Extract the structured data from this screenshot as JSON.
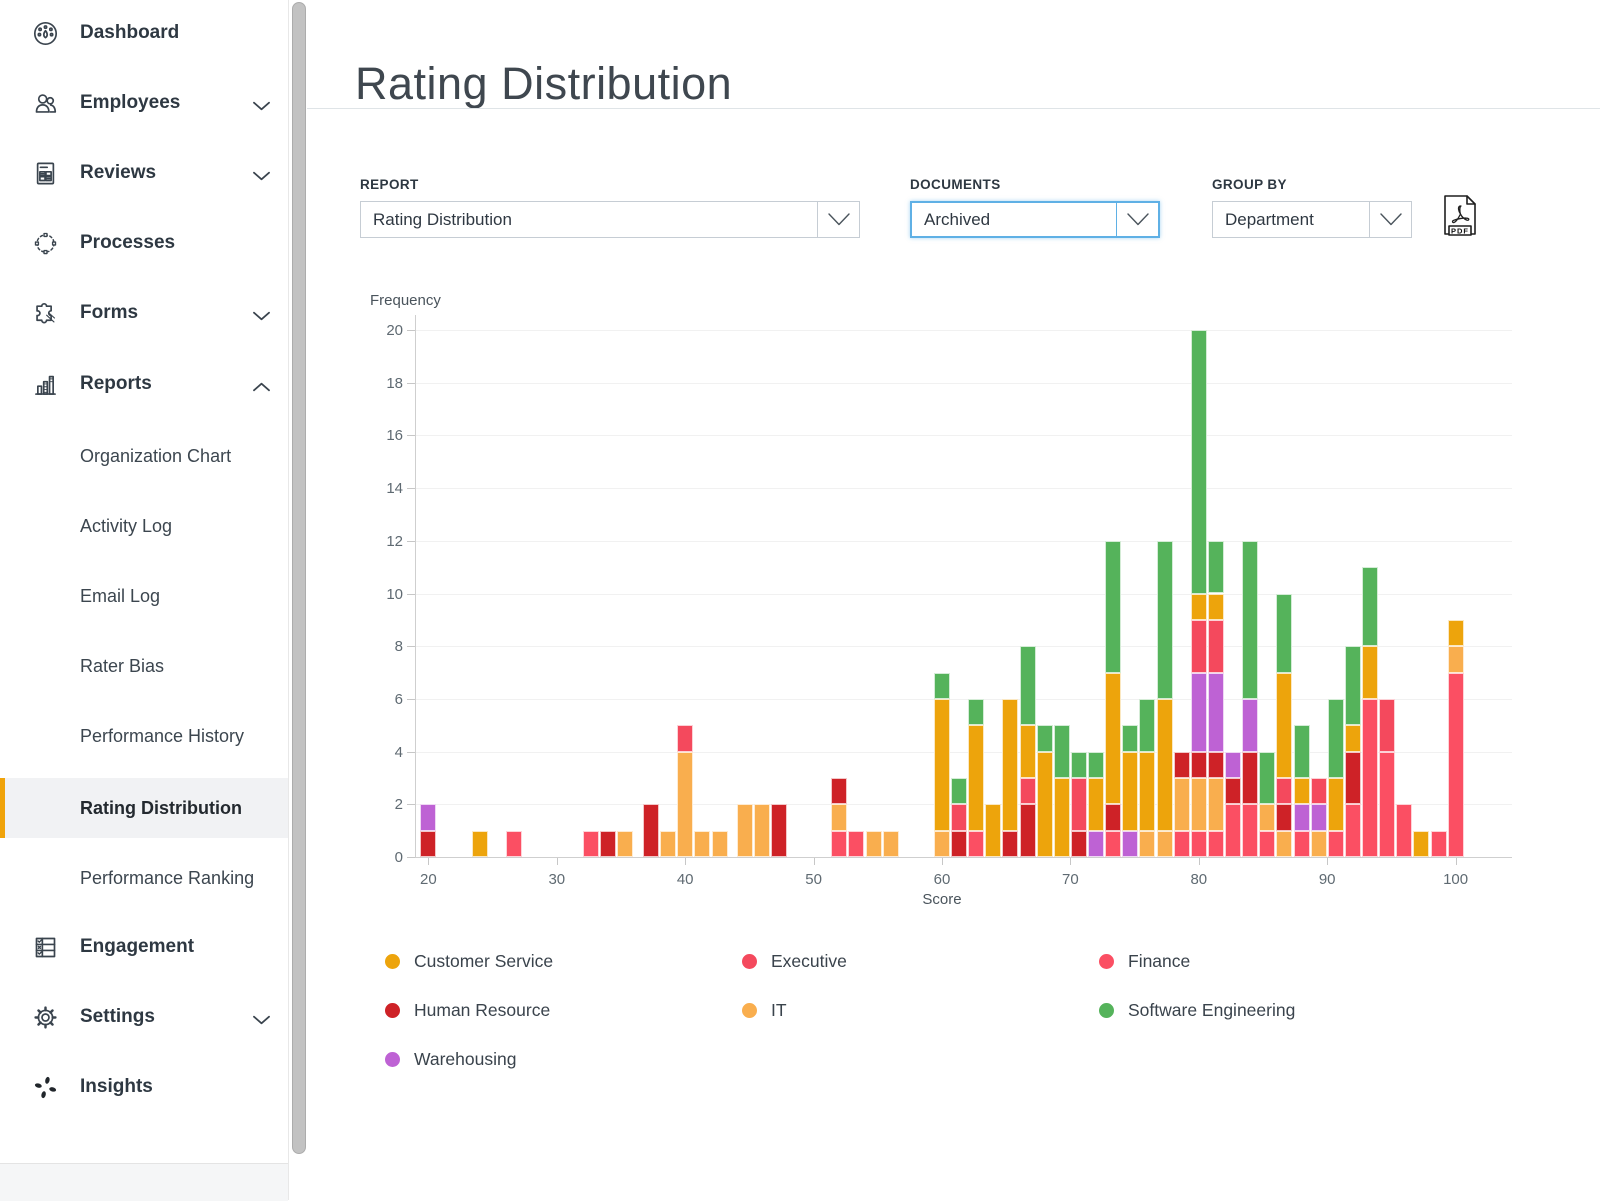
{
  "header": {
    "title": "Rating Distribution"
  },
  "sidebar": {
    "items": [
      {
        "label": "Dashboard",
        "icon": "gauge-icon"
      },
      {
        "label": "Employees",
        "icon": "people-icon",
        "chevron": "down"
      },
      {
        "label": "Reviews",
        "icon": "review-doc-icon",
        "chevron": "down"
      },
      {
        "label": "Processes",
        "icon": "process-circle-icon"
      },
      {
        "label": "Forms",
        "icon": "puzzle-icon",
        "chevron": "down"
      },
      {
        "label": "Reports",
        "icon": "bar-chart-icon",
        "chevron": "up",
        "expanded": true,
        "children": [
          {
            "label": "Organization Chart"
          },
          {
            "label": "Activity Log"
          },
          {
            "label": "Email Log"
          },
          {
            "label": "Rater Bias"
          },
          {
            "label": "Performance History"
          },
          {
            "label": "Rating Distribution",
            "active": true
          },
          {
            "label": "Performance Ranking"
          }
        ]
      },
      {
        "label": "Engagement",
        "icon": "checklist-icon"
      },
      {
        "label": "Settings",
        "icon": "gear-icon",
        "chevron": "down"
      },
      {
        "label": "Insights",
        "icon": "sparkle-icon"
      }
    ],
    "accent_color": "#F0A30A"
  },
  "controls": {
    "report": {
      "label": "REPORT",
      "value": "Rating Distribution"
    },
    "documents": {
      "label": "DOCUMENTS",
      "value": "Archived",
      "focused": true
    },
    "groupby": {
      "label": "GROUP BY",
      "value": "Department"
    },
    "export": {
      "icon": "pdf-export-icon"
    }
  },
  "chart_data": {
    "type": "bar",
    "stacked": true,
    "xlabel": "Score",
    "ylabel": "Frequency",
    "xlim": [
      18,
      104
    ],
    "ylim": [
      0,
      20
    ],
    "xticks": [
      20,
      30,
      40,
      50,
      60,
      70,
      80,
      90,
      100
    ],
    "yticks": [
      0,
      2,
      4,
      6,
      8,
      10,
      12,
      14,
      16,
      18,
      20
    ],
    "grid": "horizontal-faint",
    "legend_position": "bottom",
    "legend": [
      "Customer Service",
      "Executive",
      "Finance",
      "Human Resource",
      "IT",
      "Software Engineering",
      "Warehousing"
    ],
    "stack_order": [
      "Finance",
      "IT",
      "Human Resource",
      "Warehousing",
      "Executive",
      "Customer Service",
      "Software Engineering"
    ],
    "colors": {
      "Customer Service": "#EDA40C",
      "Executive": "#F4495D",
      "Finance": "#FB4F63",
      "Human Resource": "#CE2227",
      "IT": "#F9AE4E",
      "Software Engineering": "#55B35B",
      "Warehousing": "#BE62D4"
    },
    "bin_width": 1.333,
    "bars": [
      {
        "x": 20,
        "stack": {
          "Human Resource": 1,
          "Warehousing": 1
        }
      },
      {
        "x": 24,
        "stack": {
          "Customer Service": 1
        }
      },
      {
        "x": 26.67,
        "stack": {
          "Finance": 1
        }
      },
      {
        "x": 32.67,
        "stack": {
          "Finance": 1
        }
      },
      {
        "x": 34,
        "stack": {
          "Human Resource": 1
        }
      },
      {
        "x": 35.33,
        "stack": {
          "IT": 1
        }
      },
      {
        "x": 37.33,
        "stack": {
          "Human Resource": 2
        }
      },
      {
        "x": 38.67,
        "stack": {
          "IT": 1
        }
      },
      {
        "x": 40,
        "stack": {
          "IT": 4,
          "Executive": 1
        }
      },
      {
        "x": 41.33,
        "stack": {
          "IT": 1
        }
      },
      {
        "x": 42.67,
        "stack": {
          "IT": 1
        }
      },
      {
        "x": 44.67,
        "stack": {
          "IT": 2
        }
      },
      {
        "x": 46,
        "stack": {
          "IT": 2
        }
      },
      {
        "x": 47.33,
        "stack": {
          "Human Resource": 2
        }
      },
      {
        "x": 52,
        "stack": {
          "Finance": 1,
          "IT": 1,
          "Human Resource": 1
        }
      },
      {
        "x": 53.33,
        "stack": {
          "Finance": 1
        }
      },
      {
        "x": 54.67,
        "stack": {
          "IT": 1
        }
      },
      {
        "x": 56,
        "stack": {
          "IT": 1
        }
      },
      {
        "x": 60,
        "stack": {
          "IT": 1,
          "Customer Service": 5,
          "Software Engineering": 1
        }
      },
      {
        "x": 61.33,
        "stack": {
          "Human Resource": 1,
          "Executive": 1,
          "Software Engineering": 1
        }
      },
      {
        "x": 62.67,
        "stack": {
          "Finance": 1,
          "Customer Service": 4,
          "Software Engineering": 1
        }
      },
      {
        "x": 64,
        "stack": {
          "Customer Service": 2
        }
      },
      {
        "x": 65.33,
        "stack": {
          "Human Resource": 1,
          "Customer Service": 5
        }
      },
      {
        "x": 66.67,
        "stack": {
          "Human Resource": 2,
          "Executive": 1,
          "Customer Service": 2,
          "Software Engineering": 3
        }
      },
      {
        "x": 68,
        "stack": {
          "Customer Service": 4,
          "Software Engineering": 1
        }
      },
      {
        "x": 69.33,
        "stack": {
          "Customer Service": 3,
          "Software Engineering": 2
        }
      },
      {
        "x": 70.67,
        "stack": {
          "Human Resource": 1,
          "Executive": 2,
          "Software Engineering": 1
        }
      },
      {
        "x": 72,
        "stack": {
          "Warehousing": 1,
          "Customer Service": 2,
          "Software Engineering": 1
        }
      },
      {
        "x": 73.33,
        "stack": {
          "Finance": 1,
          "Human Resource": 1,
          "Customer Service": 5,
          "Software Engineering": 5
        }
      },
      {
        "x": 74.67,
        "stack": {
          "Warehousing": 1,
          "Customer Service": 3,
          "Software Engineering": 1
        }
      },
      {
        "x": 76,
        "stack": {
          "IT": 1,
          "Customer Service": 3,
          "Software Engineering": 2
        }
      },
      {
        "x": 77.33,
        "stack": {
          "IT": 1,
          "Customer Service": 5,
          "Software Engineering": 6
        }
      },
      {
        "x": 78.67,
        "stack": {
          "Finance": 1,
          "IT": 2,
          "Human Resource": 1
        }
      },
      {
        "x": 80,
        "stack": {
          "Finance": 1,
          "IT": 2,
          "Human Resource": 1,
          "Warehousing": 3,
          "Executive": 2,
          "Customer Service": 1,
          "Software Engineering": 10
        }
      },
      {
        "x": 81.33,
        "stack": {
          "Finance": 1,
          "IT": 2,
          "Human Resource": 1,
          "Warehousing": 3,
          "Executive": 2,
          "Customer Service": 1,
          "Software Engineering": 2
        }
      },
      {
        "x": 82.67,
        "stack": {
          "Finance": 2,
          "Human Resource": 1,
          "Warehousing": 1
        }
      },
      {
        "x": 84,
        "stack": {
          "Finance": 2,
          "Human Resource": 2,
          "Warehousing": 2,
          "Software Engineering": 6
        }
      },
      {
        "x": 85.33,
        "stack": {
          "Finance": 1,
          "IT": 1,
          "Software Engineering": 2
        }
      },
      {
        "x": 86.67,
        "stack": {
          "IT": 1,
          "Human Resource": 1,
          "Executive": 1,
          "Customer Service": 4,
          "Software Engineering": 3
        }
      },
      {
        "x": 88,
        "stack": {
          "Finance": 1,
          "Warehousing": 1,
          "Customer Service": 1,
          "Software Engineering": 2
        }
      },
      {
        "x": 89.33,
        "stack": {
          "IT": 1,
          "Warehousing": 1,
          "Executive": 1
        }
      },
      {
        "x": 90.67,
        "stack": {
          "Finance": 1,
          "Customer Service": 2,
          "Software Engineering": 3
        }
      },
      {
        "x": 92,
        "stack": {
          "Finance": 2,
          "Human Resource": 2,
          "Customer Service": 1,
          "Software Engineering": 3
        }
      },
      {
        "x": 93.33,
        "stack": {
          "Finance": 6,
          "Customer Service": 2,
          "Software Engineering": 3
        }
      },
      {
        "x": 94.67,
        "stack": {
          "Finance": 4,
          "Executive": 2
        }
      },
      {
        "x": 96,
        "stack": {
          "Finance": 2
        }
      },
      {
        "x": 97.33,
        "stack": {
          "Customer Service": 1
        }
      },
      {
        "x": 98.67,
        "stack": {
          "Finance": 1
        }
      },
      {
        "x": 100,
        "stack": {
          "Finance": 7,
          "IT": 1,
          "Customer Service": 1
        }
      }
    ]
  }
}
